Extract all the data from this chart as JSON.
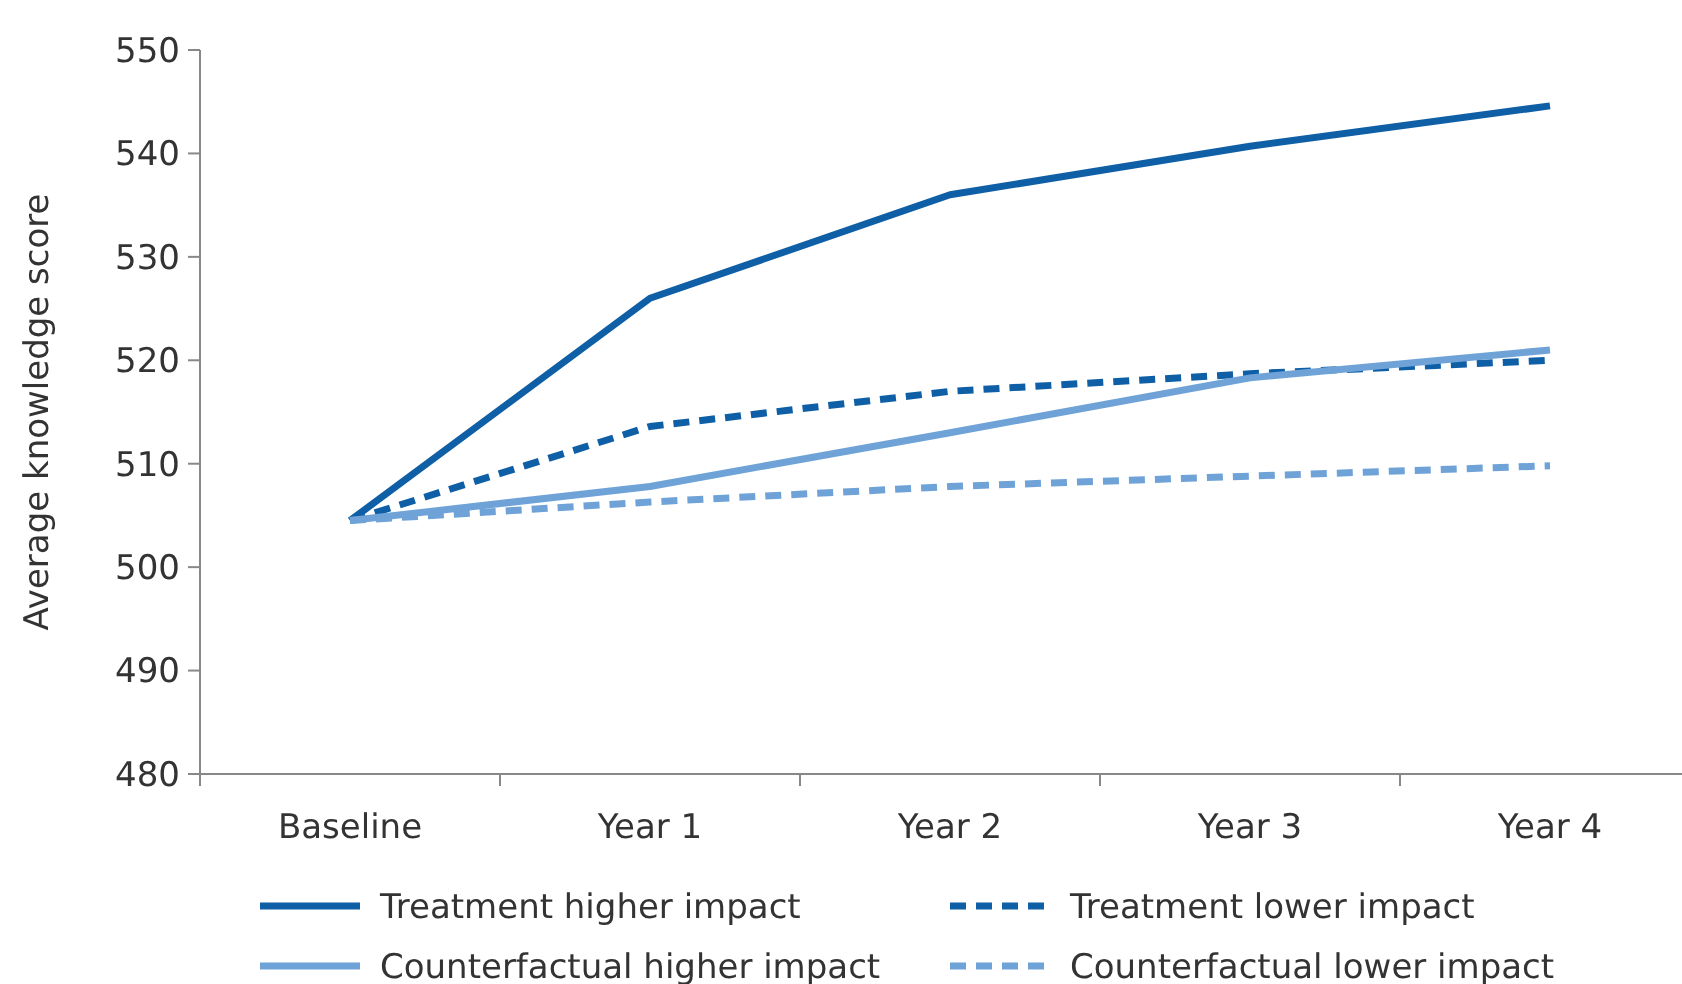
{
  "chart_data": {
    "type": "line",
    "ylabel": "Average knowledge score",
    "categories": [
      "Baseline",
      "Year 1",
      "Year 2",
      "Year 3",
      "Year 4"
    ],
    "ylim": [
      480,
      550
    ],
    "yticks": [
      480,
      490,
      500,
      510,
      520,
      530,
      540,
      550
    ],
    "grid": false,
    "legend": "bottom",
    "marker": "none",
    "series": [
      {
        "name": "Treatment higher impact",
        "color": "#0f5fa6",
        "line_style": "solid",
        "values": [
          504.5,
          526,
          536,
          540.7,
          544.6
        ]
      },
      {
        "name": "Treatment lower impact",
        "color": "#0f5fa6",
        "line_style": "dashed",
        "values": [
          504.5,
          513.6,
          517,
          518.7,
          520
        ]
      },
      {
        "name": "Counterfactual higher impact",
        "color": "#6fa3d8",
        "line_style": "solid",
        "values": [
          504.5,
          507.8,
          513,
          518.3,
          521
        ]
      },
      {
        "name": "Counterfactual lower impact",
        "color": "#6fa3d8",
        "line_style": "dashed",
        "values": [
          504.5,
          506.3,
          507.8,
          508.8,
          509.8
        ]
      }
    ]
  }
}
